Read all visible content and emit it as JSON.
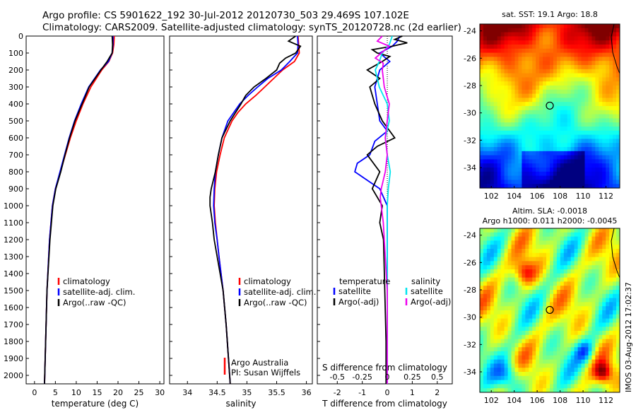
{
  "header": {
    "line1": "Argo profile: CS 5901622_192 30-Jul-2012 20120730_503 29.469S 107.102E",
    "line2": "Climatology: CARS2009. Satellite-adjusted climatology: synTS_20120728.nc (2d earlier)"
  },
  "colors": {
    "climatology": "#ff0000",
    "satellite": "#0000ff",
    "argo": "#000000",
    "sal_satellite": "#00e5ee",
    "sal_argo": "#ee00ee"
  },
  "chart_data": [
    {
      "id": "temperature",
      "type": "line",
      "xlabel": "temperature (deg C)",
      "ylabel": "",
      "xlim": [
        -2,
        31
      ],
      "ylim": [
        2050,
        0
      ],
      "xticks": [
        "0",
        "5",
        "10",
        "15",
        "20",
        "25",
        "30"
      ],
      "yticks": [
        "0",
        "100",
        "200",
        "300",
        "400",
        "500",
        "600",
        "700",
        "800",
        "900",
        "1000",
        "1100",
        "1200",
        "1300",
        "1400",
        "1500",
        "1600",
        "1700",
        "1800",
        "1900",
        "2000"
      ],
      "legend": [
        "climatology",
        "satellite-adj. clim.",
        "Argo(..raw -QC)"
      ],
      "series": [
        {
          "name": "climatology",
          "depth": [
            0,
            50,
            100,
            150,
            200,
            300,
            400,
            500,
            600,
            700,
            800,
            900,
            1000,
            1200,
            1500,
            2050
          ],
          "values": [
            19.1,
            19.0,
            18.7,
            17.8,
            16.1,
            13.5,
            11.6,
            10.0,
            8.6,
            7.4,
            6.2,
            5.0,
            4.3,
            3.6,
            3.0,
            2.4
          ]
        },
        {
          "name": "satellite-adj. clim.",
          "depth": [
            0,
            50,
            100,
            150,
            200,
            300,
            400,
            500,
            600,
            700,
            800,
            900,
            1000,
            1200,
            1500,
            2050
          ],
          "values": [
            18.8,
            18.8,
            18.6,
            17.7,
            15.8,
            13.0,
            11.2,
            9.6,
            8.3,
            7.2,
            6.1,
            5.0,
            4.3,
            3.6,
            3.0,
            2.4
          ]
        },
        {
          "name": "Argo(..raw -QC)",
          "depth": [
            0,
            50,
            100,
            150,
            200,
            300,
            400,
            500,
            600,
            700,
            800,
            900,
            1000,
            1200,
            1500,
            2050
          ],
          "values": [
            18.6,
            18.7,
            18.6,
            17.4,
            15.9,
            13.1,
            11.4,
            9.7,
            8.4,
            7.3,
            6.3,
            5.1,
            4.4,
            3.7,
            3.0,
            2.4
          ]
        }
      ]
    },
    {
      "id": "salinity",
      "type": "line",
      "xlabel": "salinity",
      "xlim": [
        33.7,
        36.1
      ],
      "ylim": [
        2050,
        0
      ],
      "xticks": [
        "34",
        "34.5",
        "35",
        "35.5",
        "36"
      ],
      "legend": [
        "climatology",
        "satellite-adj. clim.",
        "Argo(..raw -QC)"
      ],
      "annotation": [
        "Argo Australia",
        "PI: Susan Wijffels"
      ],
      "series": [
        {
          "name": "climatology",
          "depth": [
            0,
            50,
            100,
            150,
            200,
            250,
            300,
            350,
            400,
            450,
            500,
            600,
            700,
            800,
            900,
            1000,
            1100,
            1200,
            1300,
            1500,
            1700,
            2050
          ],
          "values": [
            35.86,
            35.87,
            35.88,
            35.8,
            35.6,
            35.45,
            35.3,
            35.15,
            34.98,
            34.85,
            34.75,
            34.62,
            34.55,
            34.49,
            34.46,
            34.45,
            34.47,
            34.5,
            34.53,
            34.6,
            34.65,
            34.72
          ]
        },
        {
          "name": "satellite-adj. clim.",
          "depth": [
            0,
            50,
            100,
            150,
            200,
            250,
            300,
            350,
            400,
            450,
            500,
            600,
            700,
            800,
            900,
            1000,
            1100,
            1200,
            1300,
            1500,
            1700,
            2050
          ],
          "values": [
            35.85,
            35.86,
            35.85,
            35.72,
            35.58,
            35.35,
            35.18,
            35.02,
            34.88,
            34.78,
            34.68,
            34.58,
            34.52,
            34.47,
            34.45,
            34.44,
            34.46,
            34.5,
            34.53,
            34.6,
            34.65,
            34.72
          ]
        },
        {
          "name": "Argo(..raw -QC)",
          "depth": [
            0,
            30,
            60,
            100,
            130,
            160,
            200,
            250,
            300,
            350,
            400,
            500,
            600,
            700,
            800,
            900,
            950,
            1000,
            1100,
            1200,
            1300,
            1400,
            1500,
            1700,
            2050
          ],
          "values": [
            35.82,
            35.7,
            35.9,
            35.82,
            35.65,
            35.55,
            35.5,
            35.32,
            35.12,
            34.98,
            34.9,
            34.72,
            34.58,
            34.52,
            34.47,
            34.4,
            34.38,
            34.38,
            34.42,
            34.45,
            34.5,
            34.55,
            34.6,
            34.65,
            34.72
          ]
        }
      ]
    },
    {
      "id": "difference",
      "type": "line",
      "xlabel": "T difference from climatology",
      "xlabel_top": "S difference from climatology",
      "xlim": [
        -2.8,
        2.6
      ],
      "ylim": [
        2050,
        0
      ],
      "xticks_bottom": [
        "-2",
        "-1",
        "0",
        "1",
        "2"
      ],
      "xticks_top": [
        "-0.5",
        "-0.25",
        "0",
        "0.25",
        "0.5"
      ],
      "legend_temperature": {
        "title": "temperature",
        "items": [
          "satellite",
          "Argo(-adj)"
        ]
      },
      "legend_salinity": {
        "title": "salinity",
        "items": [
          "satellite",
          "Argo(-adj)"
        ]
      },
      "series": [
        {
          "name": "temperature satellite",
          "depth": [
            0,
            30,
            60,
            100,
            150,
            200,
            300,
            400,
            500,
            560,
            620,
            700,
            750,
            800,
            850,
            900,
            1000,
            1200,
            1500,
            2050
          ],
          "values": [
            0.5,
            0.4,
            0.2,
            -0.3,
            0.1,
            -0.3,
            -0.5,
            -0.4,
            -0.3,
            0.0,
            -0.5,
            -0.7,
            -1.2,
            -1.3,
            -0.8,
            -0.3,
            0.0,
            0.0,
            0.0,
            0.0
          ]
        },
        {
          "name": "temperature Argo(-adj)",
          "depth": [
            0,
            20,
            40,
            60,
            80,
            100,
            120,
            150,
            200,
            250,
            300,
            400,
            500,
            600,
            650,
            700,
            800,
            900,
            1000,
            1100,
            1200,
            1500,
            1800,
            2050
          ],
          "values": [
            0.6,
            0.3,
            0.8,
            0.2,
            -0.6,
            -0.4,
            0.1,
            -0.2,
            -0.8,
            -0.3,
            -0.7,
            -0.5,
            -0.2,
            0.3,
            -0.4,
            -0.8,
            -0.3,
            -0.6,
            -0.2,
            -0.3,
            -0.15,
            -0.1,
            -0.05,
            -0.05
          ]
        },
        {
          "name": "salinity satellite",
          "depth": [
            0,
            50,
            100,
            150,
            200,
            300,
            400,
            500,
            600,
            700,
            800,
            900,
            1000,
            1200,
            1500,
            2050
          ],
          "values": [
            0.05,
            0.02,
            -0.05,
            -0.08,
            -0.12,
            -0.08,
            0.0,
            0.02,
            -0.02,
            0.0,
            0.03,
            0.01,
            0.0,
            0.0,
            0.0,
            0.0
          ]
        },
        {
          "name": "salinity Argo(-adj)",
          "depth": [
            0,
            30,
            60,
            100,
            130,
            160,
            200,
            300,
            400,
            500,
            600,
            700,
            800,
            900,
            950,
            1000,
            1100,
            1300,
            1500,
            2050
          ],
          "values": [
            -0.05,
            -0.1,
            0.02,
            -0.06,
            -0.12,
            -0.04,
            -0.05,
            -0.03,
            0.02,
            0.0,
            -0.02,
            0.0,
            -0.02,
            -0.06,
            -0.07,
            -0.06,
            -0.04,
            -0.02,
            0.0,
            0.0
          ]
        }
      ]
    },
    {
      "id": "sst_map",
      "type": "heatmap",
      "title": "sat. SST: 19.1  Argo: 18.8",
      "xticks": [
        "102",
        "104",
        "106",
        "108",
        "110",
        "112"
      ],
      "yticks": [
        "-24",
        "-26",
        "-28",
        "-30",
        "-32",
        "-34"
      ],
      "xlim": [
        101.0,
        113.2
      ],
      "ylim": [
        -35.5,
        -23.5
      ],
      "marker": {
        "lon": 107.1,
        "lat": -29.47
      }
    },
    {
      "id": "sla_map",
      "type": "heatmap",
      "title": "Altim. SLA: -0.0018",
      "subtitle": "Argo h1000: 0.011 h2000: -0.0045",
      "xticks": [
        "102",
        "104",
        "106",
        "108",
        "110",
        "112"
      ],
      "yticks": [
        "-24",
        "-26",
        "-28",
        "-30",
        "-32",
        "-34"
      ],
      "xlim": [
        101.0,
        113.2
      ],
      "ylim": [
        -35.5,
        -23.5
      ],
      "marker": {
        "lon": 107.1,
        "lat": -29.47
      }
    }
  ],
  "watermark": "IMOS 03-Aug-2012 17:02:37"
}
